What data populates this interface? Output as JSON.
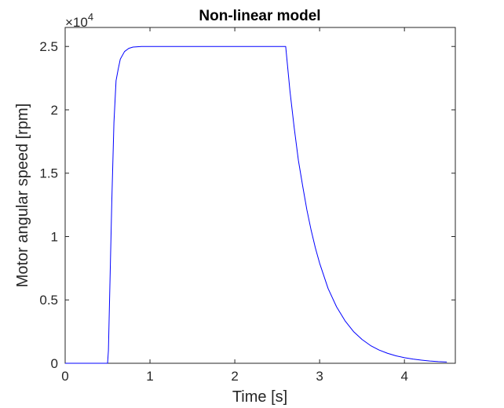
{
  "chart_data": {
    "type": "line",
    "title": "Non-linear model",
    "xlabel": "Time [s]",
    "ylabel": "Motor angular speed [rpm]",
    "xlim": [
      0,
      4.6
    ],
    "ylim": [
      0,
      26500
    ],
    "y_multiplier_label": "×10",
    "y_multiplier_exponent": "4",
    "x_ticks": [
      {
        "value": 0,
        "label": "0"
      },
      {
        "value": 1,
        "label": "1"
      },
      {
        "value": 2,
        "label": "2"
      },
      {
        "value": 3,
        "label": "3"
      },
      {
        "value": 4,
        "label": "4"
      }
    ],
    "y_ticks": [
      {
        "value": 0,
        "label": "0"
      },
      {
        "value": 5000,
        "label": "0.5"
      },
      {
        "value": 10000,
        "label": "1"
      },
      {
        "value": 15000,
        "label": "1.5"
      },
      {
        "value": 20000,
        "label": "2"
      },
      {
        "value": 25000,
        "label": "2.5"
      }
    ],
    "grid": false,
    "series": [
      {
        "color": "#0000ff",
        "x": [
          0,
          0.5,
          0.51,
          0.55,
          0.575,
          0.6,
          0.625,
          0.65,
          0.7,
          0.75,
          0.8,
          0.9,
          1.0,
          1.5,
          2.0,
          2.5,
          2.6,
          2.65,
          2.7,
          2.75,
          2.8,
          2.85,
          2.9,
          2.95,
          3.0,
          3.1,
          3.2,
          3.3,
          3.4,
          3.5,
          3.6,
          3.7,
          3.8,
          3.9,
          4.0,
          4.1,
          4.2,
          4.3,
          4.4,
          4.5
        ],
        "y": [
          0,
          0,
          1000,
          12800,
          19000,
          22300,
          23200,
          24000,
          24600,
          24850,
          24950,
          25000,
          25000,
          25000,
          25000,
          25000,
          25000,
          21500,
          18600,
          16000,
          14000,
          12100,
          10500,
          9100,
          7900,
          5900,
          4450,
          3350,
          2500,
          1880,
          1400,
          1050,
          790,
          590,
          440,
          330,
          250,
          180,
          130,
          100
        ]
      }
    ]
  }
}
